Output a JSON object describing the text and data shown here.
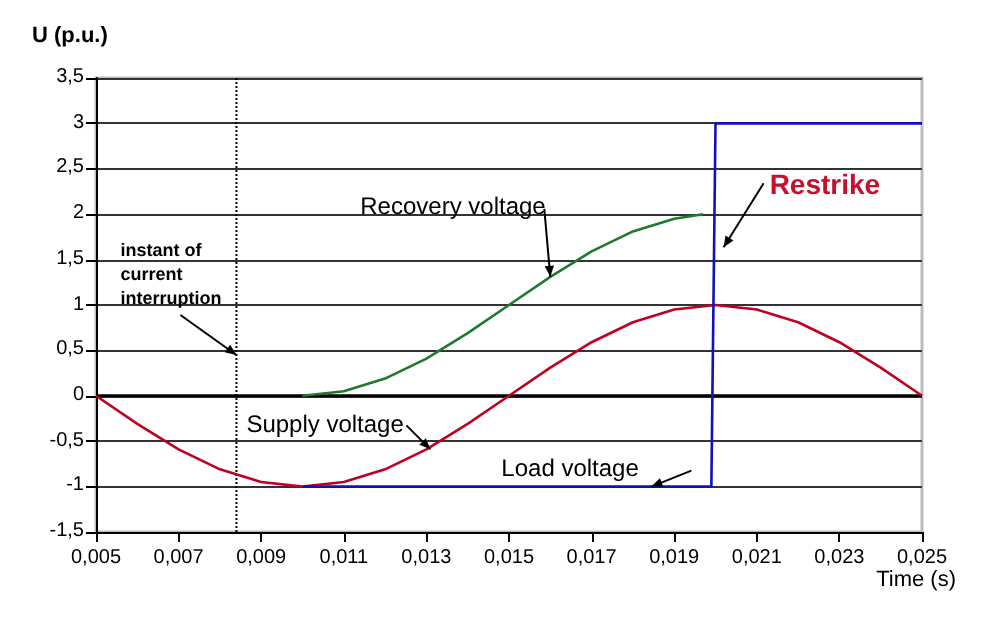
{
  "chart_data": {
    "type": "line",
    "xlabel": "Time (s)",
    "ylabel": "U (p.u.)",
    "xlim": [
      0.005,
      0.025
    ],
    "ylim": [
      -1.5,
      3.5
    ],
    "xticks": [
      {
        "value": 0.005,
        "label": "0,005"
      },
      {
        "value": 0.007,
        "label": "0,007"
      },
      {
        "value": 0.009,
        "label": "0,009"
      },
      {
        "value": 0.011,
        "label": "0,011"
      },
      {
        "value": 0.013,
        "label": "0,013"
      },
      {
        "value": 0.015,
        "label": "0,015"
      },
      {
        "value": 0.017,
        "label": "0,017"
      },
      {
        "value": 0.019,
        "label": "0,019"
      },
      {
        "value": 0.021,
        "label": "0,021"
      },
      {
        "value": 0.023,
        "label": "0,023"
      },
      {
        "value": 0.025,
        "label": "0,025"
      }
    ],
    "yticks": [
      {
        "value": -1.5,
        "label": "-1,5"
      },
      -1,
      {
        "value": -0.5,
        "label": "-0,5"
      },
      0,
      {
        "value": 0.5,
        "label": "0,5"
      },
      1,
      {
        "value": 1.5,
        "label": "1,5"
      },
      2,
      {
        "value": 2.5,
        "label": "2,5"
      },
      3,
      {
        "value": 3.5,
        "label": "3,5"
      }
    ],
    "grid": "y",
    "legend": false,
    "marker": "none",
    "line_style": "solid",
    "series": [
      {
        "name": "Supply voltage",
        "color": "#c00020",
        "x": [
          0.005,
          0.006,
          0.007,
          0.008,
          0.009,
          0.01,
          0.011,
          0.012,
          0.013,
          0.014,
          0.015,
          0.016,
          0.017,
          0.018,
          0.019,
          0.02,
          0.021,
          0.022,
          0.023,
          0.024,
          0.025
        ],
        "values": [
          0,
          -0.31,
          -0.59,
          -0.81,
          -0.95,
          -1,
          -0.95,
          -0.81,
          -0.59,
          -0.31,
          0,
          0.31,
          0.59,
          0.81,
          0.95,
          1,
          0.95,
          0.81,
          0.59,
          0.31,
          0
        ]
      },
      {
        "name": "Recovery voltage",
        "color": "#1e7a2e",
        "x": [
          0.01,
          0.011,
          0.012,
          0.013,
          0.014,
          0.015,
          0.016,
          0.017,
          0.018,
          0.019,
          0.0197
        ],
        "values": [
          0,
          0.05,
          0.19,
          0.41,
          0.69,
          1,
          1.31,
          1.59,
          1.81,
          1.95,
          2
        ]
      },
      {
        "name": "Load voltage",
        "color": "#1010c0",
        "x": [
          0.01,
          0.0199,
          0.02,
          0.025
        ],
        "values": [
          -1,
          -1,
          3,
          3
        ]
      }
    ],
    "ref_lines": [
      {
        "axis": "y",
        "value": 0,
        "color": "#000000"
      },
      {
        "axis": "x",
        "value": 0.0084,
        "color": "#000000",
        "line_style": "dotted"
      }
    ],
    "annotations": [
      {
        "text": "instant of current interruption",
        "x": 0.0084,
        "y": 0.45
      },
      {
        "text": "Restrike",
        "x": 0.0201,
        "y": 1.9
      }
    ]
  }
}
